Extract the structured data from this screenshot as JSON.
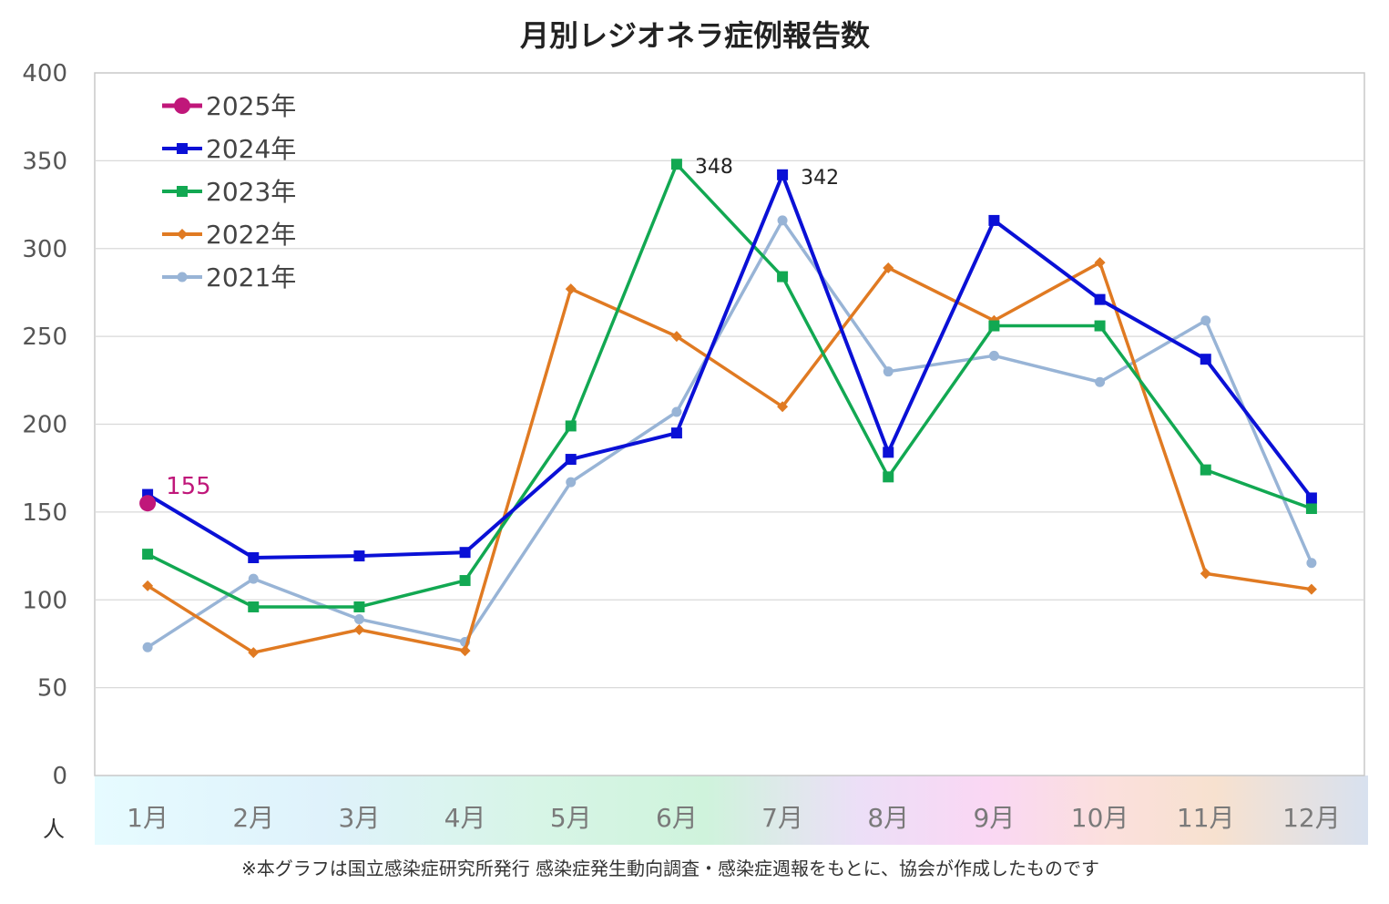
{
  "chart_data": {
    "type": "line",
    "title": "月別レジオネラ症例報告数",
    "ylabel": "人",
    "xlabel": "",
    "ylim": [
      0,
      400
    ],
    "yticks": [
      0,
      50,
      100,
      150,
      200,
      250,
      300,
      350,
      400
    ],
    "categories": [
      "1月",
      "2月",
      "3月",
      "4月",
      "5月",
      "6月",
      "7月",
      "8月",
      "9月",
      "10月",
      "11月",
      "12月"
    ],
    "grid": "horizontal",
    "legend_position": "top-left",
    "series": [
      {
        "name": "2025年",
        "color": "#c0177a",
        "marker": "circle",
        "values": [
          155,
          null,
          null,
          null,
          null,
          null,
          null,
          null,
          null,
          null,
          null,
          null
        ],
        "labels": {
          "0": "155"
        }
      },
      {
        "name": "2024年",
        "color": "#0a10d6",
        "marker": "square",
        "values": [
          160,
          124,
          125,
          127,
          180,
          195,
          342,
          184,
          316,
          271,
          237,
          158
        ],
        "labels": {
          "6": "342"
        }
      },
      {
        "name": "2023年",
        "color": "#12a852",
        "marker": "square",
        "values": [
          126,
          96,
          96,
          111,
          199,
          348,
          284,
          170,
          256,
          256,
          174,
          152
        ],
        "labels": {
          "5": "348"
        }
      },
      {
        "name": "2022年",
        "color": "#e07a22",
        "marker": "diamond",
        "values": [
          108,
          70,
          83,
          71,
          277,
          250,
          210,
          289,
          259,
          292,
          115,
          106
        ],
        "labels": {}
      },
      {
        "name": "2021年",
        "color": "#98b4d6",
        "marker": "circle-small",
        "values": [
          73,
          112,
          89,
          76,
          167,
          207,
          316,
          230,
          239,
          224,
          259,
          121
        ],
        "labels": {}
      }
    ],
    "footnote": "※本グラフは国立感染症研究所発行 感染症発生動向調査・感染症週報をもとに、協会が作成したものです"
  }
}
